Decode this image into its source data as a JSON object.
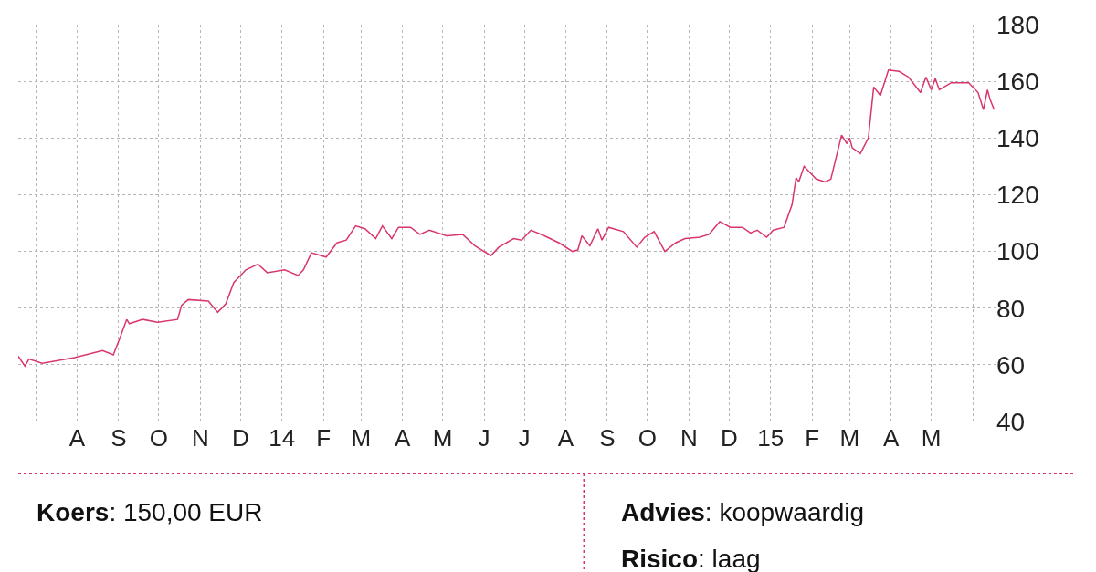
{
  "chart_data": {
    "type": "line",
    "x": [
      "2013-06-18",
      "2013-06-23",
      "2013-06-26",
      "2013-07-06",
      "2013-07-30",
      "2013-08-20",
      "2013-08-28",
      "2013-09-02",
      "2013-09-07",
      "2013-09-09",
      "2013-09-19",
      "2013-09-30",
      "2013-10-15",
      "2013-10-18",
      "2013-10-23",
      "2013-11-07",
      "2013-11-14",
      "2013-11-20",
      "2013-11-26",
      "2013-12-05",
      "2013-12-14",
      "2013-12-21",
      "2014-01-03",
      "2014-01-13",
      "2014-01-17",
      "2014-01-23",
      "2014-02-03",
      "2014-02-11",
      "2014-02-18",
      "2014-02-25",
      "2014-03-04",
      "2014-03-12",
      "2014-03-17",
      "2014-03-24",
      "2014-03-29",
      "2014-04-07",
      "2014-04-14",
      "2014-04-21",
      "2014-05-04",
      "2014-05-16",
      "2014-05-25",
      "2014-06-06",
      "2014-06-12",
      "2014-06-23",
      "2014-06-29",
      "2014-07-06",
      "2014-07-16",
      "2014-07-27",
      "2014-08-06",
      "2014-08-10",
      "2014-08-13",
      "2014-08-19",
      "2014-08-25",
      "2014-08-28",
      "2014-09-02",
      "2014-09-13",
      "2014-09-23",
      "2014-09-29",
      "2014-10-06",
      "2014-10-14",
      "2014-10-22",
      "2014-10-29",
      "2014-11-09",
      "2014-11-16",
      "2014-11-24",
      "2014-12-02",
      "2014-12-11",
      "2014-12-17",
      "2014-12-22",
      "2014-12-29",
      "2015-01-03",
      "2015-01-11",
      "2015-01-17",
      "2015-01-20",
      "2015-01-22",
      "2015-01-26",
      "2015-02-04",
      "2015-02-11",
      "2015-02-15",
      "2015-02-23",
      "2015-02-27",
      "2015-03-01",
      "2015-03-03",
      "2015-03-09",
      "2015-03-15",
      "2015-03-19",
      "2015-03-24",
      "2015-03-30",
      "2015-04-07",
      "2015-04-14",
      "2015-04-23",
      "2015-04-27",
      "2015-05-01",
      "2015-05-04",
      "2015-05-07",
      "2015-05-16",
      "2015-05-29",
      "2015-06-05",
      "2015-06-09",
      "2015-06-12",
      "2015-06-14",
      "2015-06-17"
    ],
    "series": [
      {
        "color": "#d9366b",
        "values": [
          63,
          59.5,
          62,
          60.5,
          62.5,
          65,
          63.5,
          69.5,
          76,
          74.5,
          76,
          75,
          76,
          81,
          83,
          82.5,
          78.5,
          81.5,
          89,
          93.5,
          95.5,
          92.5,
          93.5,
          91.5,
          93.5,
          99.5,
          98,
          103,
          104,
          109,
          108,
          104.5,
          109,
          104.5,
          108.5,
          108.5,
          106,
          107.5,
          105.5,
          106,
          102,
          98.5,
          101.5,
          104.5,
          104,
          107.5,
          105.5,
          103,
          100,
          100.5,
          105.5,
          102,
          108,
          104,
          108.5,
          107,
          101.5,
          105,
          107,
          100,
          103,
          104.5,
          105,
          106,
          110.5,
          108.5,
          108.5,
          106.5,
          107.5,
          105,
          107.5,
          108.5,
          116.5,
          126,
          124.5,
          130,
          125.5,
          124.5,
          125.5,
          141,
          138,
          140,
          136.5,
          134.5,
          140,
          158,
          155,
          164,
          163.5,
          161.5,
          156,
          161.5,
          157,
          161,
          157,
          159.5,
          159.5,
          156,
          150,
          157,
          153.5,
          150
        ]
      }
    ],
    "xlim": [
      "2013-06-18",
      "2015-06-18"
    ],
    "xticks": [
      {
        "value": "2013-07-01",
        "label": null
      },
      {
        "value": "2013-08-01",
        "label": "A"
      },
      {
        "value": "2013-09-01",
        "label": "S"
      },
      {
        "value": "2013-10-01",
        "label": "O"
      },
      {
        "value": "2013-11-01",
        "label": "N"
      },
      {
        "value": "2013-12-01",
        "label": "D"
      },
      {
        "value": "2014-01-01",
        "label": "14"
      },
      {
        "value": "2014-02-01",
        "label": "F"
      },
      {
        "value": "2014-03-01",
        "label": "M"
      },
      {
        "value": "2014-04-01",
        "label": "A"
      },
      {
        "value": "2014-05-01",
        "label": "M"
      },
      {
        "value": "2014-06-01",
        "label": "J"
      },
      {
        "value": "2014-07-01",
        "label": "J"
      },
      {
        "value": "2014-08-01",
        "label": "A"
      },
      {
        "value": "2014-09-01",
        "label": "S"
      },
      {
        "value": "2014-10-01",
        "label": "O"
      },
      {
        "value": "2014-11-01",
        "label": "N"
      },
      {
        "value": "2014-12-01",
        "label": "D"
      },
      {
        "value": "2015-01-01",
        "label": "15"
      },
      {
        "value": "2015-02-01",
        "label": "F"
      },
      {
        "value": "2015-03-01",
        "label": "M"
      },
      {
        "value": "2015-04-01",
        "label": "A"
      },
      {
        "value": "2015-05-01",
        "label": "M"
      },
      {
        "value": "2015-06-01",
        "label": null
      }
    ],
    "ylim": [
      40,
      180
    ],
    "yticks": [
      40,
      60,
      80,
      100,
      120,
      140,
      160,
      180
    ],
    "grid": true,
    "annotations": [
      "Koers: 150,00 EUR",
      "Advies: koopwaardig",
      "Risico: laag"
    ]
  }
}
